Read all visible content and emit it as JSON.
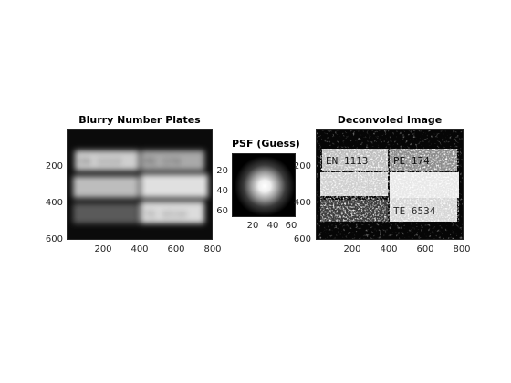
{
  "figure": {
    "panels": [
      {
        "id": "blurry",
        "title": "Blurry Number Plates",
        "x_ticks": [
          "200",
          "400",
          "600",
          "800"
        ],
        "y_ticks": [
          "200",
          "400",
          "600"
        ],
        "plates": [
          [
            "EN 1113",
            "PE 174"
          ],
          [
            "",
            ""
          ],
          [
            "",
            "TE 6534"
          ]
        ]
      },
      {
        "id": "psf",
        "title": "PSF (Guess)",
        "x_ticks": [
          "20",
          "40",
          "60"
        ],
        "y_ticks": [
          "20",
          "40",
          "60"
        ]
      },
      {
        "id": "deconvolved",
        "title": "Deconvoled Image",
        "x_ticks": [
          "200",
          "400",
          "600",
          "800"
        ],
        "y_ticks": [
          "200",
          "400",
          "600"
        ],
        "plates": [
          [
            "EN 1113",
            "PE 174"
          ],
          [
            "",
            ""
          ],
          [
            "",
            "TE 6534"
          ]
        ]
      }
    ],
    "colormap": "gray"
  }
}
